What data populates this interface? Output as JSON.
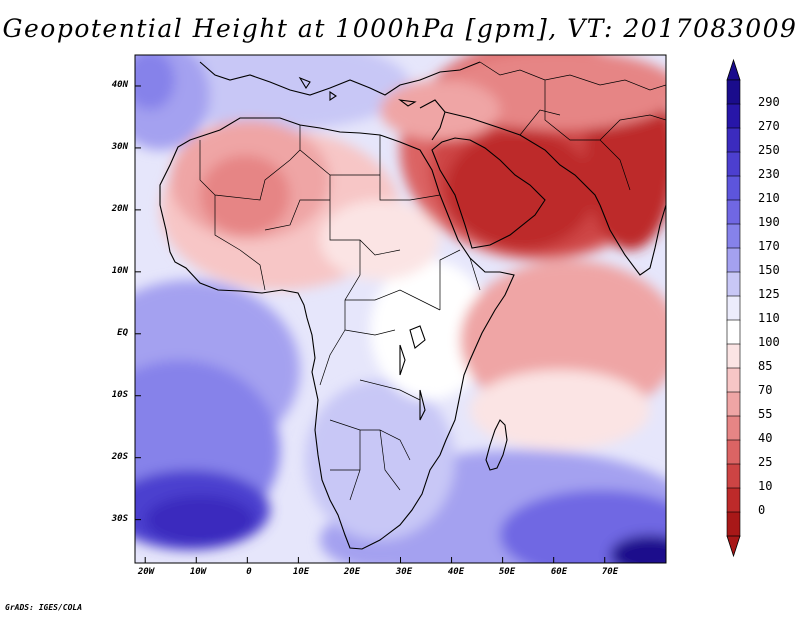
{
  "title": "Geopotential Height at 1000hPa [gpm], VT: 2017083009",
  "credit": "GrADS: IGES/COLA",
  "lat_labels": [
    "40N",
    "30N",
    "20N",
    "10N",
    "EQ",
    "10S",
    "20S",
    "30S"
  ],
  "lon_labels": [
    "20W",
    "10W",
    "0",
    "10E",
    "20E",
    "30E",
    "40E",
    "50E",
    "60E",
    "70E"
  ],
  "map_extent": {
    "lon_min": -22,
    "lon_max": 82,
    "lat_min": -37,
    "lat_max": 45
  },
  "colorbar": {
    "labels": [
      "290",
      "270",
      "250",
      "230",
      "210",
      "190",
      "170",
      "150",
      "125",
      "110",
      "100",
      "85",
      "70",
      "55",
      "40",
      "25",
      "10",
      "0"
    ],
    "colors": [
      "#1a0c8c",
      "#2716a8",
      "#3b2bbe",
      "#4c3fcf",
      "#5d55dc",
      "#7067e3",
      "#8682ea",
      "#a4a1f0",
      "#c8c7f6",
      "#ececfc",
      "#ffffff",
      "#fbe4e4",
      "#f7c6c6",
      "#efa5a5",
      "#e68585",
      "#db6464",
      "#cd4444",
      "#bd2a2a",
      "#a81818"
    ]
  },
  "regions": [
    {
      "name": "region-atlantic-low",
      "color": "#8682ea"
    },
    {
      "name": "region-southeast-atlantic-low",
      "color": "#4c3fcf"
    },
    {
      "name": "region-south-indian-low",
      "color": "#5d55dc"
    },
    {
      "name": "region-southeast-corner-low",
      "color": "#1a0c8c"
    },
    {
      "name": "region-sahara-thermal-low",
      "color": "#e68585"
    },
    {
      "name": "region-arabia-india-monsoon-low",
      "color": "#bd2a2a"
    },
    {
      "name": "region-arabian-sea-low",
      "color": "#efa5a5"
    }
  ]
}
